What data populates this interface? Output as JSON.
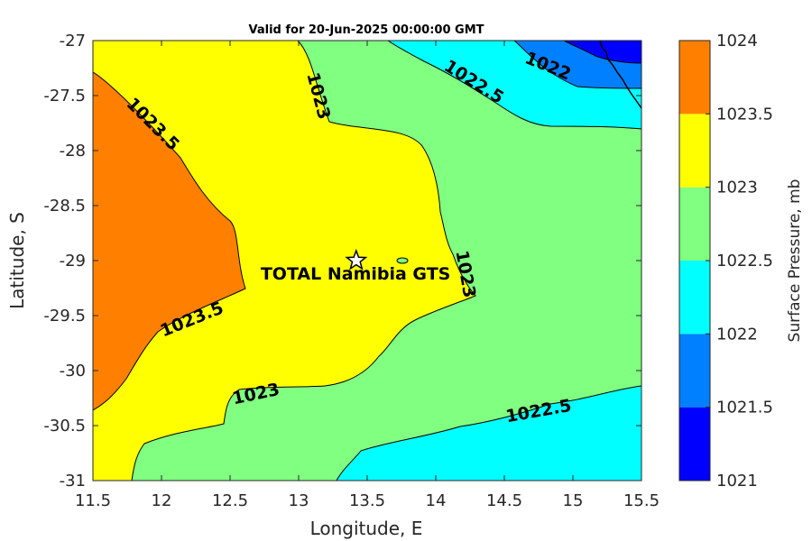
{
  "chart_data": {
    "type": "contour",
    "title": "Valid for 20-Jun-2025 00:00:00 GMT",
    "xlabel": "Longitude, E",
    "ylabel": "Latitude, S",
    "xlim": [
      11.5,
      15.5
    ],
    "ylim": [
      -31,
      -27
    ],
    "x_ticks": [
      "11.5",
      "12",
      "12.5",
      "13",
      "13.5",
      "14",
      "14.5",
      "15",
      "15.5"
    ],
    "y_ticks": [
      "-27",
      "-27.5",
      "-28",
      "-28.5",
      "-29",
      "-29.5",
      "-30",
      "-30.5",
      "-31"
    ],
    "colorbar": {
      "label": "Surface Pressure, mb",
      "ticks": [
        "1024",
        "1023.5",
        "1023",
        "1022.5",
        "1022",
        "1021.5",
        "1021"
      ],
      "levels": [
        1021,
        1021.5,
        1022,
        1022.5,
        1023,
        1023.5,
        1024
      ],
      "colors": [
        "#0000ff",
        "#0080ff",
        "#00ffff",
        "#80ff80",
        "#ffff00",
        "#ff8000",
        "#ff0000"
      ]
    },
    "contour_labels": [
      "1023.5",
      "1023",
      "1022.5",
      "1022",
      "1023",
      "1023.5",
      "1023",
      "1022.5"
    ],
    "marker": {
      "label": "TOTAL Namibia GTS",
      "lon": 13.42,
      "lat": -29.0,
      "symbol": "star"
    }
  }
}
